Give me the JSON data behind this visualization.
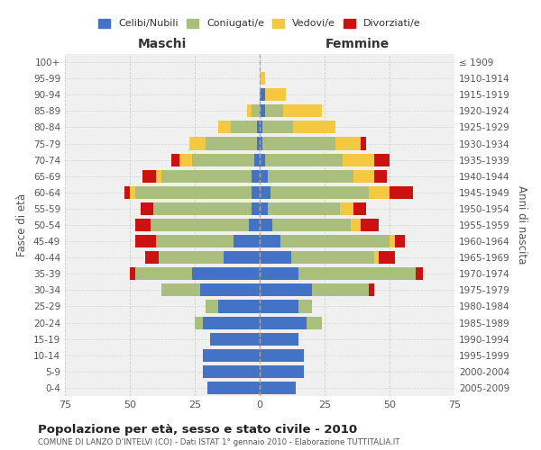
{
  "age_groups": [
    "0-4",
    "5-9",
    "10-14",
    "15-19",
    "20-24",
    "25-29",
    "30-34",
    "35-39",
    "40-44",
    "45-49",
    "50-54",
    "55-59",
    "60-64",
    "65-69",
    "70-74",
    "75-79",
    "80-84",
    "85-89",
    "90-94",
    "95-99",
    "100+"
  ],
  "birth_years": [
    "2005-2009",
    "2000-2004",
    "1995-1999",
    "1990-1994",
    "1985-1989",
    "1980-1984",
    "1975-1979",
    "1970-1974",
    "1965-1969",
    "1960-1964",
    "1955-1959",
    "1950-1954",
    "1945-1949",
    "1940-1944",
    "1935-1939",
    "1930-1934",
    "1925-1929",
    "1920-1924",
    "1915-1919",
    "1910-1914",
    "≤ 1909"
  ],
  "colors": {
    "celibi": "#4472C4",
    "coniugati": "#AABF7E",
    "vedovi": "#F5C842",
    "divorziati": "#CC1111"
  },
  "maschi": {
    "celibi": [
      20,
      22,
      22,
      19,
      22,
      16,
      23,
      26,
      14,
      10,
      4,
      3,
      3,
      3,
      2,
      1,
      1,
      0,
      0,
      0,
      0
    ],
    "coniugati": [
      0,
      0,
      0,
      0,
      3,
      5,
      15,
      22,
      25,
      30,
      38,
      38,
      45,
      35,
      24,
      20,
      10,
      3,
      0,
      0,
      0
    ],
    "vedovi": [
      0,
      0,
      0,
      0,
      0,
      0,
      0,
      0,
      0,
      0,
      0,
      0,
      2,
      2,
      5,
      6,
      5,
      2,
      0,
      0,
      0
    ],
    "divorziati": [
      0,
      0,
      0,
      0,
      0,
      0,
      0,
      2,
      5,
      8,
      6,
      5,
      2,
      5,
      3,
      0,
      0,
      0,
      0,
      0,
      0
    ]
  },
  "femmine": {
    "celibi": [
      14,
      17,
      17,
      15,
      18,
      15,
      20,
      15,
      12,
      8,
      5,
      3,
      4,
      3,
      2,
      1,
      1,
      2,
      2,
      0,
      0
    ],
    "coniugati": [
      0,
      0,
      0,
      0,
      6,
      5,
      22,
      45,
      32,
      42,
      30,
      28,
      38,
      33,
      30,
      28,
      12,
      7,
      0,
      0,
      0
    ],
    "vedovi": [
      0,
      0,
      0,
      0,
      0,
      0,
      0,
      0,
      2,
      2,
      4,
      5,
      8,
      8,
      12,
      10,
      16,
      15,
      8,
      2,
      0
    ],
    "divorziati": [
      0,
      0,
      0,
      0,
      0,
      0,
      2,
      3,
      6,
      4,
      7,
      5,
      9,
      5,
      6,
      2,
      0,
      0,
      0,
      0,
      0
    ]
  },
  "title": "Popolazione per età, sesso e stato civile - 2010",
  "subtitle": "COMUNE DI LANZO D'INTELVI (CO) - Dati ISTAT 1° gennaio 2010 - Elaborazione TUTTITALIA.IT",
  "xlabel_left": "Maschi",
  "xlabel_right": "Femmine",
  "ylabel_left": "Fasce di età",
  "ylabel_right": "Anni di nascita",
  "xlim": 75,
  "legend_labels": [
    "Celibi/Nubili",
    "Coniugati/e",
    "Vedovi/e",
    "Divorziati/e"
  ],
  "bg_color": "#F0F0F0",
  "grid_color": "#CCCCCC"
}
